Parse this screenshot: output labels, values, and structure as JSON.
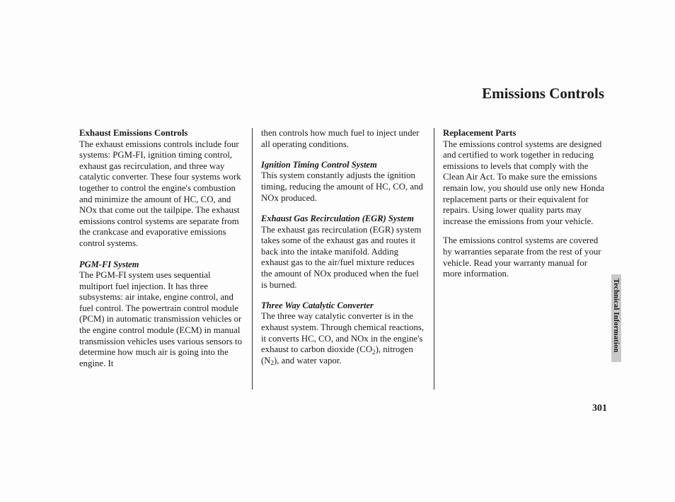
{
  "page_title": "Emissions Controls",
  "side_label": "Technical Information",
  "page_number": "301",
  "col1": {
    "h1": "Exhaust Emissions Controls",
    "p1": "The exhaust emissions controls include four systems: PGM-FI, ignition timing control, exhaust gas recirculation, and three way catalytic converter. These four systems work together to control the engine's combustion and minimize the amount of HC, CO, and NOx that come out the tailpipe. The exhaust emissions control systems are separate from the crankcase and evaporative emissions control systems.",
    "h2": "PGM-FI System",
    "p2": "The PGM-FI system uses sequential multiport fuel injection. It has three subsystems: air intake, engine control, and fuel control. The powertrain control module (PCM) in automatic transmission vehicles or the engine control module (ECM) in manual transmission vehicles uses various sensors to determine how much air is going into the engine. It"
  },
  "col2": {
    "p0": "then controls how much fuel to inject under all operating conditions.",
    "h1": "Ignition Timing Control System",
    "p1": "This system constantly adjusts the ignition timing, reducing the amount of HC, CO, and NOx produced.",
    "h2": "Exhaust Gas Recirculation (EGR) System",
    "p2": "The exhaust gas recirculation (EGR) system takes some of the exhaust gas and routes it back into the intake manifold. Adding exhaust gas to the air/fuel mixture reduces the amount of NOx produced when the fuel is burned.",
    "h3": "Three Way Catalytic Converter",
    "p3a": "The three way catalytic converter is in the exhaust system. Through chemical reactions, it converts HC, CO, and NOx in the engine's exhaust to carbon dioxide (CO",
    "p3b": "), nitrogen (N",
    "p3c": "), and water vapor."
  },
  "col3": {
    "h1": "Replacement Parts",
    "p1": "The emissions control systems are designed and certified to work together in reducing emissions to levels that comply with the Clean Air Act. To make sure the emissions remain low, you should use only new Honda replacement parts or their equivalent for repairs. Using lower quality parts may increase the emissions from your vehicle.",
    "p2": "The emissions control systems are covered by warranties separate from the rest of your vehicle. Read your warranty manual for more information."
  }
}
